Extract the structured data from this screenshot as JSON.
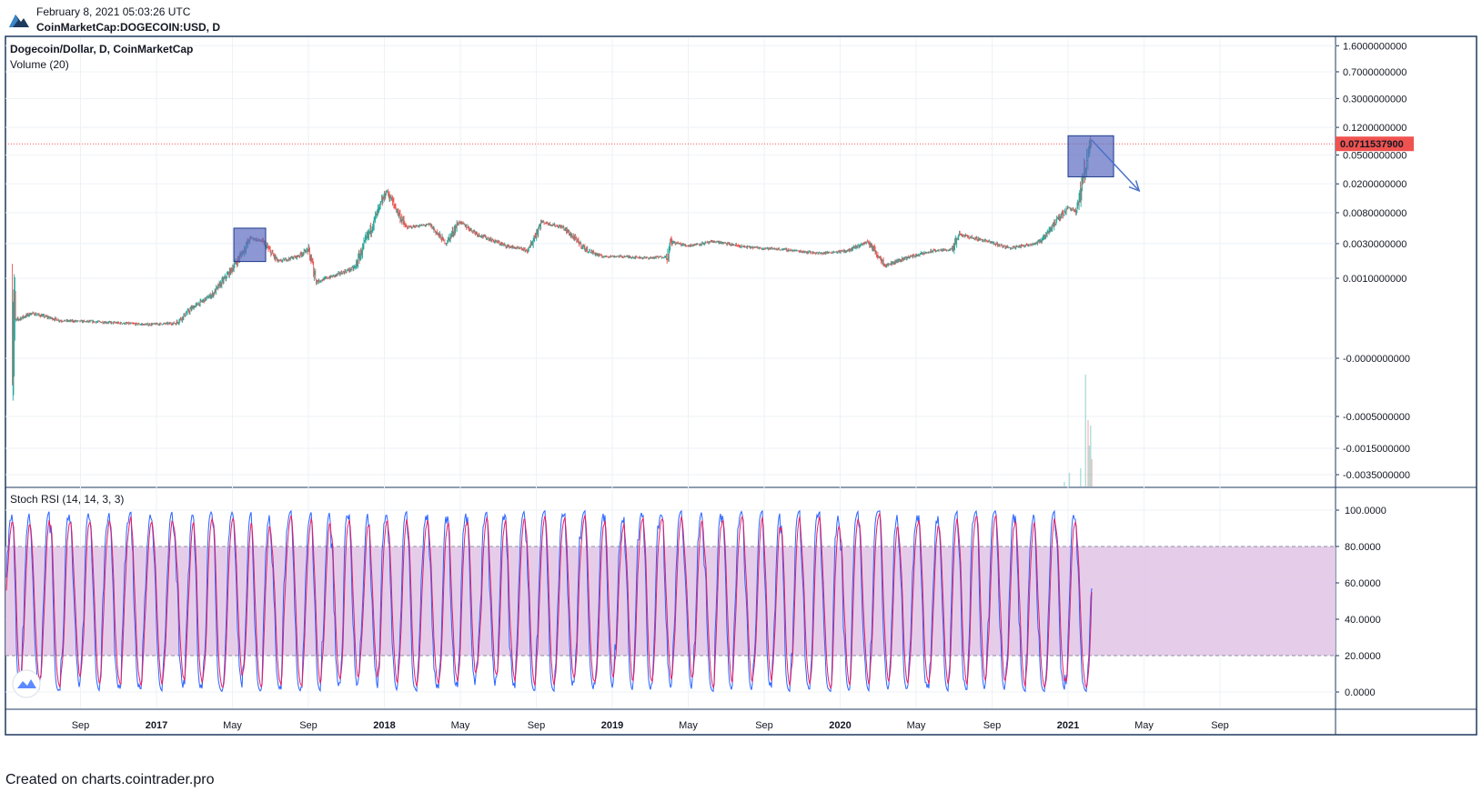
{
  "header": {
    "date": "February 8, 2021 05:03:26 UTC",
    "symbol": "CoinMarketCap:DOGECOIN:USD, D"
  },
  "footer": {
    "text": "Created on charts.cointrader.pro"
  },
  "colors": {
    "frame": "#1e3a5f",
    "grid": "#eef2f6",
    "up": "#26a69a",
    "down": "#ef5350",
    "box_fill": "#5c6bc0",
    "arrow": "#4a72c8",
    "rsi_k": "#2962ff",
    "rsi_d": "#e91e63",
    "rsi_band": "#e1c4e6",
    "price_line": "#ef5350"
  },
  "chart_data": {
    "type": "candlestick",
    "main_legend": "Dogecoin/Dollar, D, CoinMarketCap",
    "volume_legend": "Volume (20)",
    "scale": "log",
    "current_price": "0.0711537900",
    "price_ticks": [
      "1.6000000000",
      "0.7000000000",
      "0.3000000000",
      "0.1200000000",
      "0.0500000000",
      "0.0200000000",
      "0.0080000000",
      "0.0030000000",
      "0.0010000000"
    ],
    "volume_ticks": [
      "-0.0000000000",
      "-0.0005000000",
      "-0.0015000000",
      "-0.0035000000"
    ],
    "time_labels": [
      {
        "t": "Sep",
        "bold": false
      },
      {
        "t": "2017",
        "bold": true
      },
      {
        "t": "May",
        "bold": false
      },
      {
        "t": "Sep",
        "bold": false
      },
      {
        "t": "2018",
        "bold": true
      },
      {
        "t": "May",
        "bold": false
      },
      {
        "t": "Sep",
        "bold": false
      },
      {
        "t": "2019",
        "bold": true
      },
      {
        "t": "May",
        "bold": false
      },
      {
        "t": "Sep",
        "bold": false
      },
      {
        "t": "2020",
        "bold": true
      },
      {
        "t": "May",
        "bold": false
      },
      {
        "t": "Sep",
        "bold": false
      },
      {
        "t": "2021",
        "bold": true
      },
      {
        "t": "May",
        "bold": false
      },
      {
        "t": "Sep",
        "bold": false
      }
    ],
    "price_series": [
      [
        "2016-05-15",
        0.00025
      ],
      [
        "2016-06-15",
        0.00033
      ],
      [
        "2016-08-01",
        0.00026
      ],
      [
        "2016-10-01",
        0.00025
      ],
      [
        "2016-12-15",
        0.00023
      ],
      [
        "2017-02-01",
        0.00024
      ],
      [
        "2017-03-01",
        0.0004
      ],
      [
        "2017-04-01",
        0.0006
      ],
      [
        "2017-05-01",
        0.0013
      ],
      [
        "2017-05-15",
        0.002
      ],
      [
        "2017-06-01",
        0.0036
      ],
      [
        "2017-06-20",
        0.0032
      ],
      [
        "2017-07-15",
        0.0017
      ],
      [
        "2017-08-15",
        0.002
      ],
      [
        "2017-09-01",
        0.0025
      ],
      [
        "2017-09-15",
        0.0009
      ],
      [
        "2017-10-15",
        0.0011
      ],
      [
        "2017-11-15",
        0.0014
      ],
      [
        "2017-12-15",
        0.006
      ],
      [
        "2018-01-05",
        0.016
      ],
      [
        "2018-02-05",
        0.005
      ],
      [
        "2018-03-15",
        0.0055
      ],
      [
        "2018-04-10",
        0.003
      ],
      [
        "2018-05-01",
        0.006
      ],
      [
        "2018-06-01",
        0.004
      ],
      [
        "2018-07-15",
        0.0028
      ],
      [
        "2018-08-20",
        0.0024
      ],
      [
        "2018-09-10",
        0.006
      ],
      [
        "2018-10-15",
        0.005
      ],
      [
        "2018-11-20",
        0.0025
      ],
      [
        "2018-12-15",
        0.002
      ],
      [
        "2019-01-15",
        0.002
      ],
      [
        "2019-03-01",
        0.0019
      ],
      [
        "2019-04-01",
        0.002
      ],
      [
        "2019-04-05",
        0.0032
      ],
      [
        "2019-05-01",
        0.0028
      ],
      [
        "2019-06-15",
        0.0032
      ],
      [
        "2019-08-01",
        0.0027
      ],
      [
        "2019-10-01",
        0.0025
      ],
      [
        "2019-12-01",
        0.0022
      ],
      [
        "2020-01-15",
        0.0024
      ],
      [
        "2020-02-15",
        0.0032
      ],
      [
        "2020-03-15",
        0.0015
      ],
      [
        "2020-04-15",
        0.0019
      ],
      [
        "2020-06-01",
        0.0024
      ],
      [
        "2020-07-01",
        0.0025
      ],
      [
        "2020-07-10",
        0.004
      ],
      [
        "2020-08-15",
        0.0034
      ],
      [
        "2020-10-01",
        0.0026
      ],
      [
        "2020-11-15",
        0.0031
      ],
      [
        "2020-12-01",
        0.0045
      ],
      [
        "2021-01-01",
        0.0095
      ],
      [
        "2021-01-15",
        0.0085
      ],
      [
        "2021-01-28",
        0.03
      ],
      [
        "2021-02-05",
        0.075
      ],
      [
        "2021-02-08",
        0.07115379
      ]
    ],
    "boxes": [
      {
        "from": "2017-05-05",
        "to": "2017-06-25",
        "low": 0.0017,
        "high": 0.0049
      },
      {
        "from": "2021-01-01",
        "to": "2021-03-15",
        "low": 0.025,
        "high": 0.092
      }
    ],
    "arrow": {
      "from": [
        "2021-02-08",
        0.08
      ],
      "to": [
        "2021-04-25",
        0.016
      ]
    },
    "stoch_rsi": {
      "legend": "Stoch RSI (14, 14, 3, 3)",
      "ticks": [
        "100.0000",
        "80.0000",
        "60.0000",
        "40.0000",
        "20.0000",
        "0.0000"
      ],
      "band": [
        20,
        80
      ],
      "last_k": 57,
      "last_d": 55
    }
  }
}
